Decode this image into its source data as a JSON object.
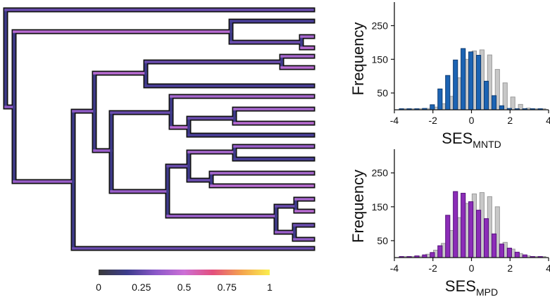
{
  "tree": {
    "edge_color_values": [
      0.22,
      0.25,
      0.32,
      0.45,
      0.55,
      0.6
    ]
  },
  "colorbar": {
    "ticks": [
      "0",
      "0.25",
      "0.5",
      "0.75",
      "1"
    ],
    "stops": [
      "#3a3a3a",
      "#3c3c8c",
      "#8a58c8",
      "#cc6fd6",
      "#e34f7d",
      "#f4a24e",
      "#fbee4e"
    ]
  },
  "chart_data": [
    {
      "type": "bar",
      "name": "top-histogram",
      "ylabel": "Frequency",
      "xlabel_main": "SES",
      "xlabel_sub": "MNTD",
      "xlim": [
        -4,
        4
      ],
      "ylim": [
        0,
        320
      ],
      "xticks": [
        -4,
        -2,
        0,
        2,
        4
      ],
      "yticks": [
        50,
        150,
        250
      ],
      "bin_width": 0.4,
      "x": [
        -3.6,
        -3.2,
        -2.8,
        -2.4,
        -2.0,
        -1.6,
        -1.2,
        -0.8,
        -0.4,
        0.0,
        0.4,
        0.8,
        1.2,
        1.6,
        2.0,
        2.4,
        2.8,
        3.2,
        3.6
      ],
      "series": [
        {
          "color": "#c8c8c8",
          "edge": "#9a9a9a",
          "values": [
            1,
            1,
            2,
            4,
            8,
            18,
            40,
            95,
            150,
            175,
            178,
            163,
            120,
            80,
            38,
            16,
            5,
            2,
            1
          ]
        },
        {
          "color": "#1c64b4",
          "edge": "#0d3a70",
          "values": [
            1,
            1,
            2,
            4,
            15,
            62,
            102,
            148,
            182,
            172,
            162,
            85,
            42,
            12,
            4,
            2,
            1,
            1,
            1
          ]
        }
      ]
    },
    {
      "type": "bar",
      "name": "bottom-histogram",
      "ylabel": "Frequency",
      "xlabel_main": "SES",
      "xlabel_sub": "MPD",
      "xlim": [
        -4,
        4
      ],
      "ylim": [
        0,
        320
      ],
      "xticks": [
        -4,
        -2,
        0,
        2,
        4
      ],
      "yticks": [
        50,
        150,
        250
      ],
      "bin_width": 0.4,
      "x": [
        -3.6,
        -3.2,
        -2.8,
        -2.4,
        -2.0,
        -1.6,
        -1.2,
        -0.8,
        -0.4,
        0.0,
        0.4,
        0.8,
        1.2,
        1.6,
        2.0,
        2.4,
        2.8,
        3.2,
        3.6
      ],
      "series": [
        {
          "color": "#c8c8c8",
          "edge": "#9a9a9a",
          "values": [
            1,
            2,
            4,
            10,
            22,
            42,
            80,
            118,
            160,
            188,
            192,
            180,
            150,
            45,
            25,
            12,
            5,
            2,
            1
          ]
        },
        {
          "color": "#8c2db8",
          "edge": "#54107a",
          "values": [
            2,
            3,
            5,
            8,
            15,
            35,
            125,
            195,
            190,
            165,
            140,
            115,
            70,
            40,
            28,
            16,
            8,
            3,
            1
          ]
        }
      ]
    }
  ]
}
